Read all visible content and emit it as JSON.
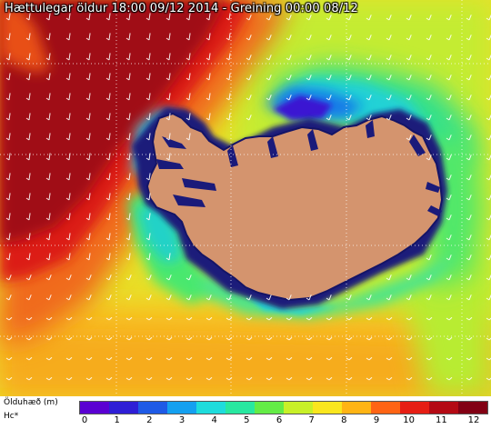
{
  "header": {
    "title": "Hættulegar öldur 18:00 09/12 2014 - Greining 00:00 08/12"
  },
  "map": {
    "land_color": "#d4946e",
    "coast_sea_color": "#1a1a7a",
    "wind_arrow_color": "#ffffff",
    "grid_line_color": "#ffffff"
  },
  "legend": {
    "title": "Ölduhæð (m)",
    "unit": "Hc*",
    "ticks": [
      "0",
      "1",
      "2",
      "3",
      "4",
      "5",
      "6",
      "7",
      "8",
      "9",
      "10",
      "11",
      "12"
    ],
    "colors": [
      "#5a00d2",
      "#2e1ed6",
      "#1e5ae6",
      "#14a0f0",
      "#1edcdc",
      "#28e8a0",
      "#64ec46",
      "#c8f028",
      "#fae61e",
      "#ffb414",
      "#ff6414",
      "#e61e14",
      "#b40a14",
      "#820014"
    ]
  }
}
